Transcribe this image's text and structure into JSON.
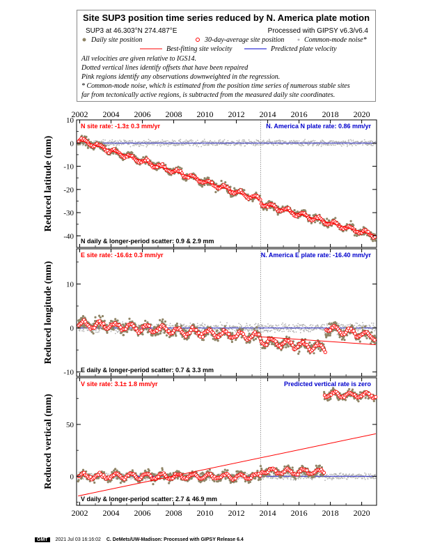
{
  "header": {
    "title": "Site SUP3 position time series reduced by N. America plate motion",
    "site_location": "SUP3 at 46.303°N 274.487°E",
    "processed": "Processed with GIPSY v6.3/v6.4",
    "legend": {
      "daily": "Daily site position",
      "avg30": "30-day-average site position",
      "cm_noise": "Common-mode noise*",
      "best_fit": "Best-fitting site velocity",
      "predicted": "Predicted plate velocity"
    },
    "notes": [
      "All velocities are given relative to IGS14.",
      "Dotted vertical lines identify offsets that have been repaired",
      "Pink regions identify any observations downweighted in the regression.",
      "* Common-mode noise, which is estimated from the position time series of numerous stable sites",
      "far from tectonically active regions, is subtracted from the measured daily site coordinates."
    ]
  },
  "colors": {
    "daily": "#8f8466",
    "avg30": "#ff0000",
    "cm_noise": "#b3b3b3",
    "best_fit": "#ff0000",
    "predicted": "#0000cc",
    "zero_line": "#3333cc"
  },
  "chart_data": [
    {
      "type": "scatter",
      "component": "N",
      "ylabel": "Reduced latitude (mm)",
      "ylim": [
        -45,
        10
      ],
      "yticks": [
        -40,
        -30,
        -20,
        -10,
        0,
        10
      ],
      "xlim": [
        2001.8,
        2020.95
      ],
      "xticks": [
        2002,
        2004,
        2006,
        2008,
        2010,
        2012,
        2014,
        2016,
        2018,
        2020
      ],
      "offset_line_x": 2013.55,
      "site_rate_label": "N site rate:  -1.3± 0.3 mm/yr",
      "plate_rate_label": "N. America N plate rate: 0.86 mm/yr",
      "scatter_label": "N daily & longer-period scatter:   0.9 &   2.9 mm",
      "segments": [
        {
          "x": [
            2001.9,
            2013.55
          ],
          "y": [
            1.5,
            -24.5
          ]
        },
        {
          "x": [
            2013.55,
            2020.9
          ],
          "y": [
            -26.0,
            -40.0
          ]
        }
      ],
      "daily_noise": 1.2,
      "cm_noise_amp": 1.5
    },
    {
      "type": "scatter",
      "component": "E",
      "ylabel": "Reduced longitude (mm)",
      "ylim": [
        -11,
        18
      ],
      "yticks": [
        -10,
        0,
        10
      ],
      "xlim": [
        2001.8,
        2020.95
      ],
      "xticks": [
        2002,
        2004,
        2006,
        2008,
        2010,
        2012,
        2014,
        2016,
        2018,
        2020
      ],
      "offset_line_x": 2013.55,
      "site_rate_label": "E site rate:  -16.6± 0.3 mm/yr",
      "plate_rate_label": "N. America E plate rate: -16.40 mm/yr",
      "scatter_label": "E daily & longer-period scatter:   0.7 &   3.3 mm",
      "segments": [
        {
          "x": [
            2001.9,
            2013.55
          ],
          "y": [
            1.0,
            -2.0
          ]
        },
        {
          "x": [
            2013.55,
            2017.7
          ],
          "y": [
            -3.0,
            -4.5
          ]
        },
        {
          "x": [
            2017.7,
            2020.9
          ],
          "y": [
            0.0,
            -2.0
          ]
        }
      ],
      "best_fit_line": {
        "x": [
          2013.55,
          2020.9
        ],
        "y": [
          -2.0,
          -3.8
        ]
      },
      "daily_noise": 0.9,
      "cm_noise_amp": 1.2
    },
    {
      "type": "scatter",
      "component": "V",
      "ylabel": "Reduced vertical (mm)",
      "ylim": [
        -28,
        95
      ],
      "yticks": [
        0,
        50
      ],
      "xlim": [
        2001.8,
        2020.95
      ],
      "xticks": [
        2002,
        2004,
        2006,
        2008,
        2010,
        2012,
        2014,
        2016,
        2018,
        2020
      ],
      "offset_line_x": 2013.55,
      "site_rate_label": "V site rate:   3.1± 1.8 mm/yr",
      "plate_rate_label": "Predicted vertical rate is zero",
      "scatter_label": "V daily & longer-period scatter:   2.7 &  46.9 mm",
      "segments": [
        {
          "x": [
            2001.9,
            2013.55
          ],
          "y": [
            0.0,
            0.0
          ]
        },
        {
          "x": [
            2013.55,
            2017.6
          ],
          "y": [
            5.0,
            4.0
          ]
        },
        {
          "x": [
            2017.6,
            2020.9
          ],
          "y": [
            79.0,
            78.0
          ]
        }
      ],
      "best_fit_line": {
        "x": [
          2001.9,
          2020.9
        ],
        "y": [
          -19.0,
          41.0
        ]
      },
      "daily_noise": 3.0,
      "cm_noise_amp": 3.5
    }
  ],
  "footer": {
    "logo": "GMT",
    "timestamp": "2021 Jul 03 16:16:02",
    "credit": "C. DeMets/UW-Madison: Processed with GIPSY Release 6.4"
  }
}
